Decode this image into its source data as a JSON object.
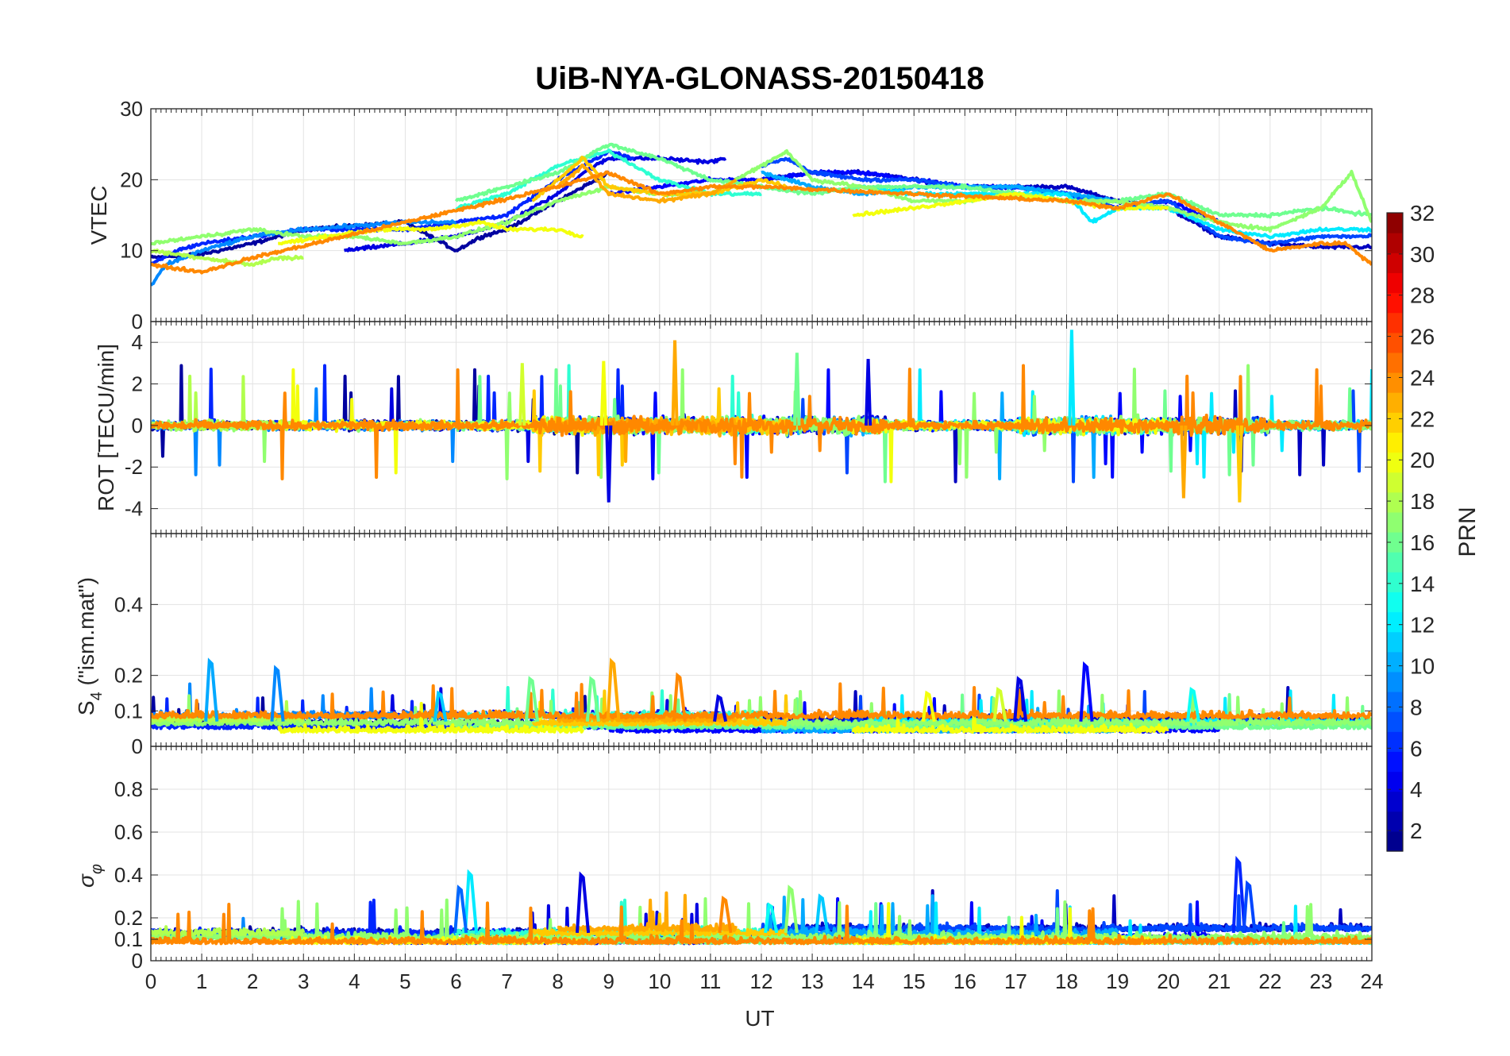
{
  "chart_data": {
    "type": "line",
    "title": "UiB-NYA-GLONASS-20150418",
    "xlabel": "UT",
    "xlim": [
      0,
      24
    ],
    "xticks": [
      "0",
      "1",
      "2",
      "3",
      "4",
      "5",
      "6",
      "7",
      "8",
      "9",
      "10",
      "11",
      "12",
      "13",
      "14",
      "15",
      "16",
      "17",
      "18",
      "19",
      "20",
      "21",
      "22",
      "23",
      "24"
    ],
    "grid": true,
    "panels": [
      {
        "id": "vtec",
        "ylabel": "VTEC",
        "ylim": [
          0,
          30
        ],
        "yticks": [
          0,
          10,
          20,
          30
        ],
        "ytick_labels": [
          "0",
          "10",
          "20",
          "30"
        ],
        "kind": "vtec"
      },
      {
        "id": "rot",
        "ylabel": "ROT [TECU/min]",
        "ylim": [
          -5.2,
          5
        ],
        "yticks": [
          -4,
          -2,
          0,
          2,
          4
        ],
        "ytick_labels": [
          "-4",
          "-2",
          "0",
          "2",
          "4"
        ],
        "kind": "rot"
      },
      {
        "id": "s4",
        "ylabel_main": "S",
        "ylabel_sub": "4",
        "ylabel_rest": " (\"ism.mat\")",
        "ylim": [
          0,
          0.6
        ],
        "yticks": [
          0,
          0.1,
          0.2,
          0.4
        ],
        "ytick_labels": [
          "0",
          "0.1",
          "0.2",
          "0.4"
        ],
        "kind": "s4"
      },
      {
        "id": "sigphi",
        "ylabel_main": "σ",
        "ylabel_sub": "φ",
        "ylim": [
          0,
          1
        ],
        "yticks": [
          0,
          0.1,
          0.2,
          0.4,
          0.6,
          0.8
        ],
        "ytick_labels": [
          "0",
          "0.1",
          "0.2",
          "0.4",
          "0.6",
          "0.8"
        ],
        "kind": "sigphi"
      }
    ],
    "colorbar": {
      "label": "PRN",
      "range": [
        1,
        32
      ],
      "ticks": [
        2,
        4,
        6,
        8,
        10,
        12,
        14,
        16,
        18,
        20,
        22,
        24,
        26,
        28,
        30,
        32
      ],
      "tick_labels": [
        "2",
        "4",
        "6",
        "8",
        "10",
        "12",
        "14",
        "16",
        "18",
        "20",
        "22",
        "24",
        "26",
        "28",
        "30",
        "32"
      ],
      "colormap": "jet"
    },
    "series": [
      {
        "prn": 2,
        "name": "PRN 2",
        "t0": 0.0,
        "t1": 9.0,
        "vtec": [
          [
            0,
            9
          ],
          [
            1,
            9.5
          ],
          [
            2,
            11
          ],
          [
            3,
            13
          ],
          [
            4,
            13.5
          ],
          [
            5,
            14
          ],
          [
            5.5,
            12
          ],
          [
            6,
            10
          ],
          [
            6.5,
            12
          ],
          [
            7,
            13
          ],
          [
            8,
            17
          ],
          [
            8.5,
            19
          ],
          [
            9,
            21
          ]
        ]
      },
      {
        "prn": 3,
        "name": "PRN 3",
        "t0": 12.0,
        "t1": 24.0,
        "vtec": [
          [
            12,
            20
          ],
          [
            13,
            21
          ],
          [
            14,
            21
          ],
          [
            15,
            20
          ],
          [
            16,
            19
          ],
          [
            17,
            19
          ],
          [
            18,
            19
          ],
          [
            19,
            17
          ],
          [
            20,
            16
          ],
          [
            21,
            12
          ],
          [
            22,
            11
          ],
          [
            23,
            10.5
          ],
          [
            24,
            10.5
          ]
        ]
      },
      {
        "prn": 4,
        "name": "PRN 4",
        "t0": 3.8,
        "t1": 11.3,
        "vtec": [
          [
            3.8,
            10
          ],
          [
            5,
            11
          ],
          [
            6,
            12
          ],
          [
            7,
            14
          ],
          [
            8,
            18
          ],
          [
            8.5,
            21
          ],
          [
            9,
            23
          ],
          [
            10,
            23
          ],
          [
            11,
            22.5
          ],
          [
            11.3,
            23
          ]
        ]
      },
      {
        "prn": 5,
        "name": "PRN 5",
        "t0": 9.0,
        "t1": 21.0,
        "vtec": [
          [
            9,
            18
          ],
          [
            10,
            19
          ],
          [
            11,
            20
          ],
          [
            12,
            20
          ],
          [
            13,
            21
          ],
          [
            14,
            21
          ],
          [
            15,
            20
          ],
          [
            16,
            19
          ],
          [
            17,
            19
          ],
          [
            18,
            18
          ],
          [
            19,
            16
          ],
          [
            20,
            17
          ],
          [
            21,
            14
          ]
        ]
      },
      {
        "prn": 6,
        "name": "PRN 6",
        "t0": 0.0,
        "t1": 9.5,
        "vtec": [
          [
            0,
            8
          ],
          [
            0.5,
            10
          ],
          [
            1,
            11
          ],
          [
            2,
            12
          ],
          [
            3,
            13
          ],
          [
            4,
            13
          ],
          [
            5,
            13
          ],
          [
            6,
            14
          ],
          [
            7,
            15
          ],
          [
            8,
            20
          ],
          [
            9,
            24
          ],
          [
            9.5,
            23
          ]
        ]
      },
      {
        "prn": 7,
        "name": "PRN 7",
        "t0": 12.0,
        "t1": 24.0,
        "vtec": [
          [
            12,
            22
          ],
          [
            12.5,
            23
          ],
          [
            13,
            21
          ],
          [
            14,
            20
          ],
          [
            15,
            20
          ],
          [
            16,
            19
          ],
          [
            17,
            19
          ],
          [
            18,
            18
          ],
          [
            19,
            16
          ],
          [
            20,
            17
          ],
          [
            21,
            12
          ],
          [
            22,
            11
          ],
          [
            23,
            12
          ],
          [
            24,
            12
          ]
        ]
      },
      {
        "prn": 9,
        "name": "PRN 9",
        "t0": 0.0,
        "t1": 6.0,
        "vtec": [
          [
            0,
            5
          ],
          [
            0.3,
            8
          ],
          [
            1,
            10
          ],
          [
            2,
            12
          ],
          [
            3,
            13
          ],
          [
            4,
            13.5
          ],
          [
            5,
            14
          ],
          [
            6,
            14
          ]
        ]
      },
      {
        "prn": 10,
        "name": "PRN 10",
        "t0": 12.0,
        "t1": 19.0,
        "vtec": [
          [
            12,
            21
          ],
          [
            13,
            19
          ],
          [
            14,
            18
          ],
          [
            15,
            19
          ],
          [
            16,
            19
          ],
          [
            17,
            19
          ],
          [
            18,
            18
          ],
          [
            19,
            17
          ]
        ]
      },
      {
        "prn": 12,
        "name": "PRN 12",
        "t0": 14.0,
        "t1": 24.0,
        "vtec": [
          [
            14,
            19
          ],
          [
            15,
            18
          ],
          [
            16,
            18
          ],
          [
            17,
            18
          ],
          [
            18,
            18
          ],
          [
            18.5,
            14
          ],
          [
            19,
            16
          ],
          [
            20,
            16
          ],
          [
            21,
            13
          ],
          [
            22,
            12
          ],
          [
            23,
            13
          ],
          [
            24,
            13
          ]
        ]
      },
      {
        "prn": 14,
        "name": "PRN 14",
        "t0": 6.0,
        "t1": 12.0,
        "vtec": [
          [
            6,
            16
          ],
          [
            7,
            18
          ],
          [
            8,
            22
          ],
          [
            9,
            24
          ],
          [
            10,
            20
          ],
          [
            11,
            18
          ],
          [
            12,
            18
          ]
        ]
      },
      {
        "prn": 16,
        "name": "PRN 16",
        "t0": 6.0,
        "t1": 24.0,
        "vtec": [
          [
            6,
            17
          ],
          [
            7,
            19
          ],
          [
            8,
            21
          ],
          [
            9,
            25
          ],
          [
            10,
            23
          ],
          [
            11,
            20
          ],
          [
            12,
            19
          ],
          [
            13,
            18
          ],
          [
            14,
            19
          ],
          [
            15,
            19
          ],
          [
            16,
            19
          ],
          [
            17,
            18
          ],
          [
            18,
            17
          ],
          [
            19,
            17
          ],
          [
            20,
            18
          ],
          [
            21,
            15
          ],
          [
            22,
            15
          ],
          [
            23,
            16
          ],
          [
            24,
            15
          ]
        ]
      },
      {
        "prn": 17,
        "name": "PRN 17",
        "t0": 0.0,
        "t1": 24.0,
        "vtec": [
          [
            0,
            11
          ],
          [
            1,
            12
          ],
          [
            2,
            13
          ],
          [
            3,
            12
          ],
          [
            4,
            12
          ],
          [
            5,
            11
          ],
          [
            6,
            12
          ],
          [
            7,
            14
          ],
          [
            8,
            17
          ],
          [
            9,
            19
          ],
          [
            10,
            18
          ],
          [
            11,
            18
          ],
          [
            12,
            22
          ],
          [
            12.5,
            24
          ],
          [
            13,
            20
          ],
          [
            14,
            19
          ],
          [
            15,
            17
          ],
          [
            16,
            17
          ],
          [
            17,
            18
          ],
          [
            18,
            17
          ],
          [
            19,
            17
          ],
          [
            20,
            16
          ],
          [
            21,
            14
          ],
          [
            22,
            13
          ],
          [
            23,
            16
          ],
          [
            23.6,
            21
          ],
          [
            24,
            14
          ]
        ]
      },
      {
        "prn": 18,
        "name": "PRN 18",
        "t0": 0.0,
        "t1": 3.0,
        "vtec": [
          [
            0,
            10
          ],
          [
            1,
            9
          ],
          [
            2,
            8
          ],
          [
            2.5,
            9
          ],
          [
            3,
            9
          ]
        ]
      },
      {
        "prn": 20,
        "name": "PRN 20",
        "t0": 2.5,
        "t1": 8.5,
        "vtec": [
          [
            2.5,
            11
          ],
          [
            3.5,
            12
          ],
          [
            4.5,
            13
          ],
          [
            5.5,
            13
          ],
          [
            6.5,
            14
          ],
          [
            7,
            13
          ],
          [
            8,
            13
          ],
          [
            8.5,
            12
          ]
        ]
      },
      {
        "prn": 20,
        "name": "PRN 20b",
        "t0": 13.8,
        "t1": 20.0,
        "vtec": [
          [
            13.8,
            15
          ],
          [
            15,
            16
          ],
          [
            16,
            17
          ],
          [
            17,
            18
          ],
          [
            18,
            17
          ],
          [
            19,
            16
          ],
          [
            20,
            16
          ]
        ]
      },
      {
        "prn": 22,
        "name": "PRN 22",
        "t0": 7.5,
        "t1": 12.5,
        "vtec": [
          [
            7.5,
            17
          ],
          [
            8,
            20
          ],
          [
            8.5,
            23
          ],
          [
            9,
            19
          ],
          [
            10,
            18
          ],
          [
            11,
            18
          ],
          [
            12,
            20
          ],
          [
            12.5,
            19
          ]
        ]
      },
      {
        "prn": 23,
        "name": "PRN 23",
        "t0": 8.0,
        "t1": 11.5,
        "vtec": [
          [
            8,
            19
          ],
          [
            8.5,
            22
          ],
          [
            9,
            18
          ],
          [
            10,
            17
          ],
          [
            11,
            18
          ],
          [
            11.5,
            20
          ]
        ]
      },
      {
        "prn": 24,
        "name": "PRN 24",
        "t0": 0.0,
        "t1": 24.0,
        "vtec": [
          [
            0,
            8
          ],
          [
            1,
            7
          ],
          [
            2,
            9
          ],
          [
            8,
            19
          ],
          [
            9,
            21
          ],
          [
            10,
            18
          ],
          [
            11,
            19
          ],
          [
            12,
            19
          ],
          [
            18,
            17
          ],
          [
            19,
            16
          ],
          [
            20,
            18
          ],
          [
            21,
            14
          ],
          [
            22,
            10
          ],
          [
            23,
            11
          ],
          [
            23.5,
            11
          ],
          [
            24,
            8
          ]
        ]
      }
    ],
    "s4_spikes": [
      [
        1.2,
        0.24,
        10
      ],
      [
        2.5,
        0.22,
        9
      ],
      [
        9.1,
        0.24,
        23
      ],
      [
        10.4,
        0.2,
        24
      ],
      [
        18.4,
        0.23,
        5
      ],
      [
        17.1,
        0.19,
        4
      ],
      [
        7.5,
        0.19,
        16
      ],
      [
        8.7,
        0.19,
        16
      ],
      [
        20.5,
        0.16,
        13
      ],
      [
        5.7,
        0.15,
        11
      ],
      [
        16.7,
        0.16,
        19
      ],
      [
        11.2,
        0.14,
        4
      ],
      [
        15.3,
        0.15,
        20
      ]
    ],
    "sigphi_spikes": [
      [
        8.5,
        0.4,
        4
      ],
      [
        21.4,
        0.47,
        6
      ],
      [
        21.6,
        0.36,
        7
      ],
      [
        6.3,
        0.41,
        12
      ],
      [
        6.1,
        0.34,
        8
      ],
      [
        12.6,
        0.34,
        17
      ],
      [
        13.2,
        0.3,
        11
      ],
      [
        11.3,
        0.29,
        24
      ],
      [
        12.2,
        0.26,
        13
      ]
    ]
  }
}
